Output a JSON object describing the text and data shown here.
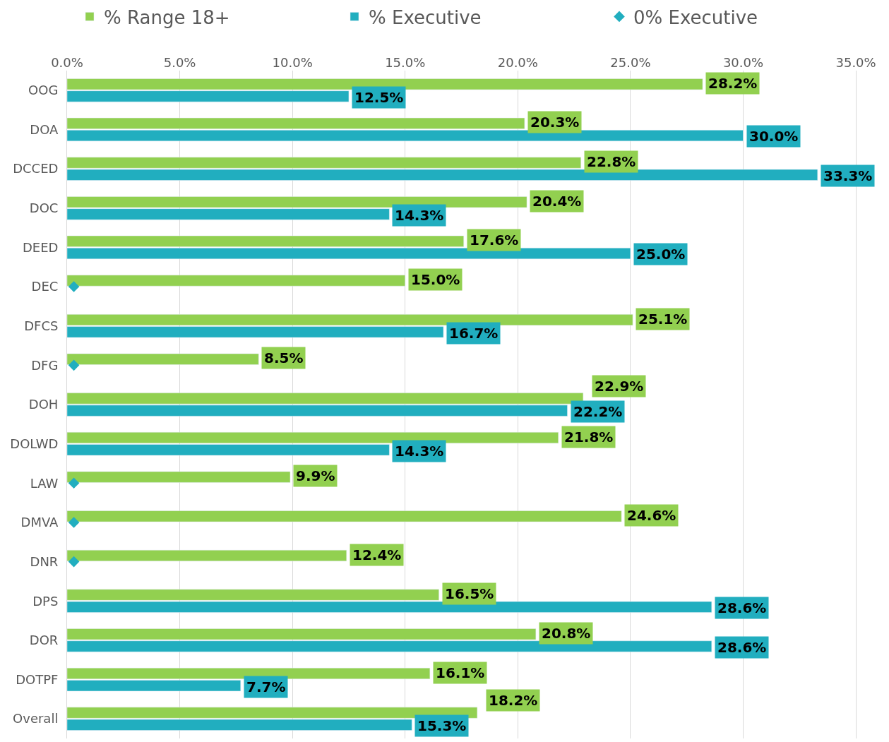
{
  "chart_data": {
    "type": "bar",
    "orientation": "horizontal",
    "categories": [
      "OOG",
      "DOA",
      "DCCED",
      "DOC",
      "DEED",
      "DEC",
      "DFCS",
      "DFG",
      "DOH",
      "DOLWD",
      "LAW",
      "DMVA",
      "DNR",
      "DPS",
      "DOR",
      "DOTPF",
      "Overall"
    ],
    "series": [
      {
        "name": "% Range 18+",
        "color": "#92d050",
        "values": [
          28.2,
          20.3,
          22.8,
          20.4,
          17.6,
          15.0,
          25.1,
          8.5,
          22.9,
          21.8,
          9.9,
          24.6,
          12.4,
          16.5,
          20.8,
          16.1,
          18.2
        ],
        "value_labels": [
          "28.2%",
          "20.3%",
          "22.8%",
          "20.4%",
          "17.6%",
          "15.0%",
          "25.1%",
          "8.5%",
          "22.9%",
          "21.8%",
          "9.9%",
          "24.6%",
          "12.4%",
          "16.5%",
          "20.8%",
          "16.1%",
          "18.2%"
        ]
      },
      {
        "name": "% Executive",
        "color": "#21aebf",
        "values": [
          12.5,
          30.0,
          33.3,
          14.3,
          25.0,
          null,
          16.7,
          null,
          22.2,
          14.3,
          null,
          null,
          null,
          28.6,
          28.6,
          7.7,
          15.3
        ],
        "value_labels": [
          "12.5%",
          "30.0%",
          "33.3%",
          "14.3%",
          "25.0%",
          null,
          "16.7%",
          null,
          "22.2%",
          "14.3%",
          null,
          null,
          null,
          "28.6%",
          "28.6%",
          "7.7%",
          "15.3%"
        ]
      },
      {
        "name": "0% Executive",
        "type": "scatter",
        "marker": "diamond",
        "color": "#21aebf",
        "values": [
          null,
          null,
          null,
          null,
          null,
          0.3,
          null,
          0.3,
          null,
          null,
          0.3,
          0.3,
          0.3,
          null,
          null,
          null,
          null
        ]
      }
    ],
    "xlim": [
      0,
      36
    ],
    "xticks": [
      {
        "value": 0,
        "label": "0.0%"
      },
      {
        "value": 5,
        "label": "5.0%"
      },
      {
        "value": 10,
        "label": "10.0%"
      },
      {
        "value": 15,
        "label": "15.0%"
      },
      {
        "value": 20,
        "label": "20.0%"
      },
      {
        "value": 25,
        "label": "25.0%"
      },
      {
        "value": 30,
        "label": "30.0%"
      },
      {
        "value": 35,
        "label": "35.0%"
      }
    ],
    "grid": "x",
    "legend": "top"
  }
}
